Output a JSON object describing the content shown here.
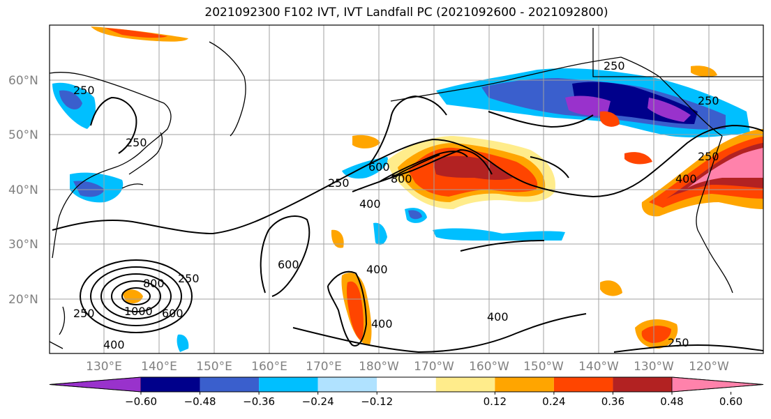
{
  "title": "2021092300 F102 IVT, IVT Landfall PC (2021092600 - 2021092800)",
  "lat_labels": [
    "60°N",
    "50°N",
    "40°N",
    "30°N",
    "20°N"
  ],
  "lon_labels": [
    "130°E",
    "140°E",
    "150°E",
    "160°E",
    "170°E",
    "180°W",
    "170°W",
    "160°W",
    "150°W",
    "140°W",
    "130°W",
    "120°W"
  ],
  "colorbar": {
    "colors": [
      "#9932cc",
      "#00008b",
      "#3a5fcd",
      "#00bfff",
      "#b0e2ff",
      "#ffffff",
      "#ffec8b",
      "#ffa500",
      "#ff4500",
      "#b22222",
      "#ff82ab"
    ],
    "tick_labels": [
      "−0.60",
      "−0.48",
      "−0.36",
      "−0.24",
      "−0.12",
      "0.12",
      "0.24",
      "0.36",
      "0.48",
      "0.60"
    ]
  },
  "contour_labels": [
    "250",
    "250",
    "250",
    "250",
    "250",
    "250",
    "250",
    "600",
    "800",
    "400",
    "600",
    "400",
    "400",
    "400",
    "600",
    "800",
    "1000",
    "250",
    "400",
    "400",
    "250"
  ]
}
